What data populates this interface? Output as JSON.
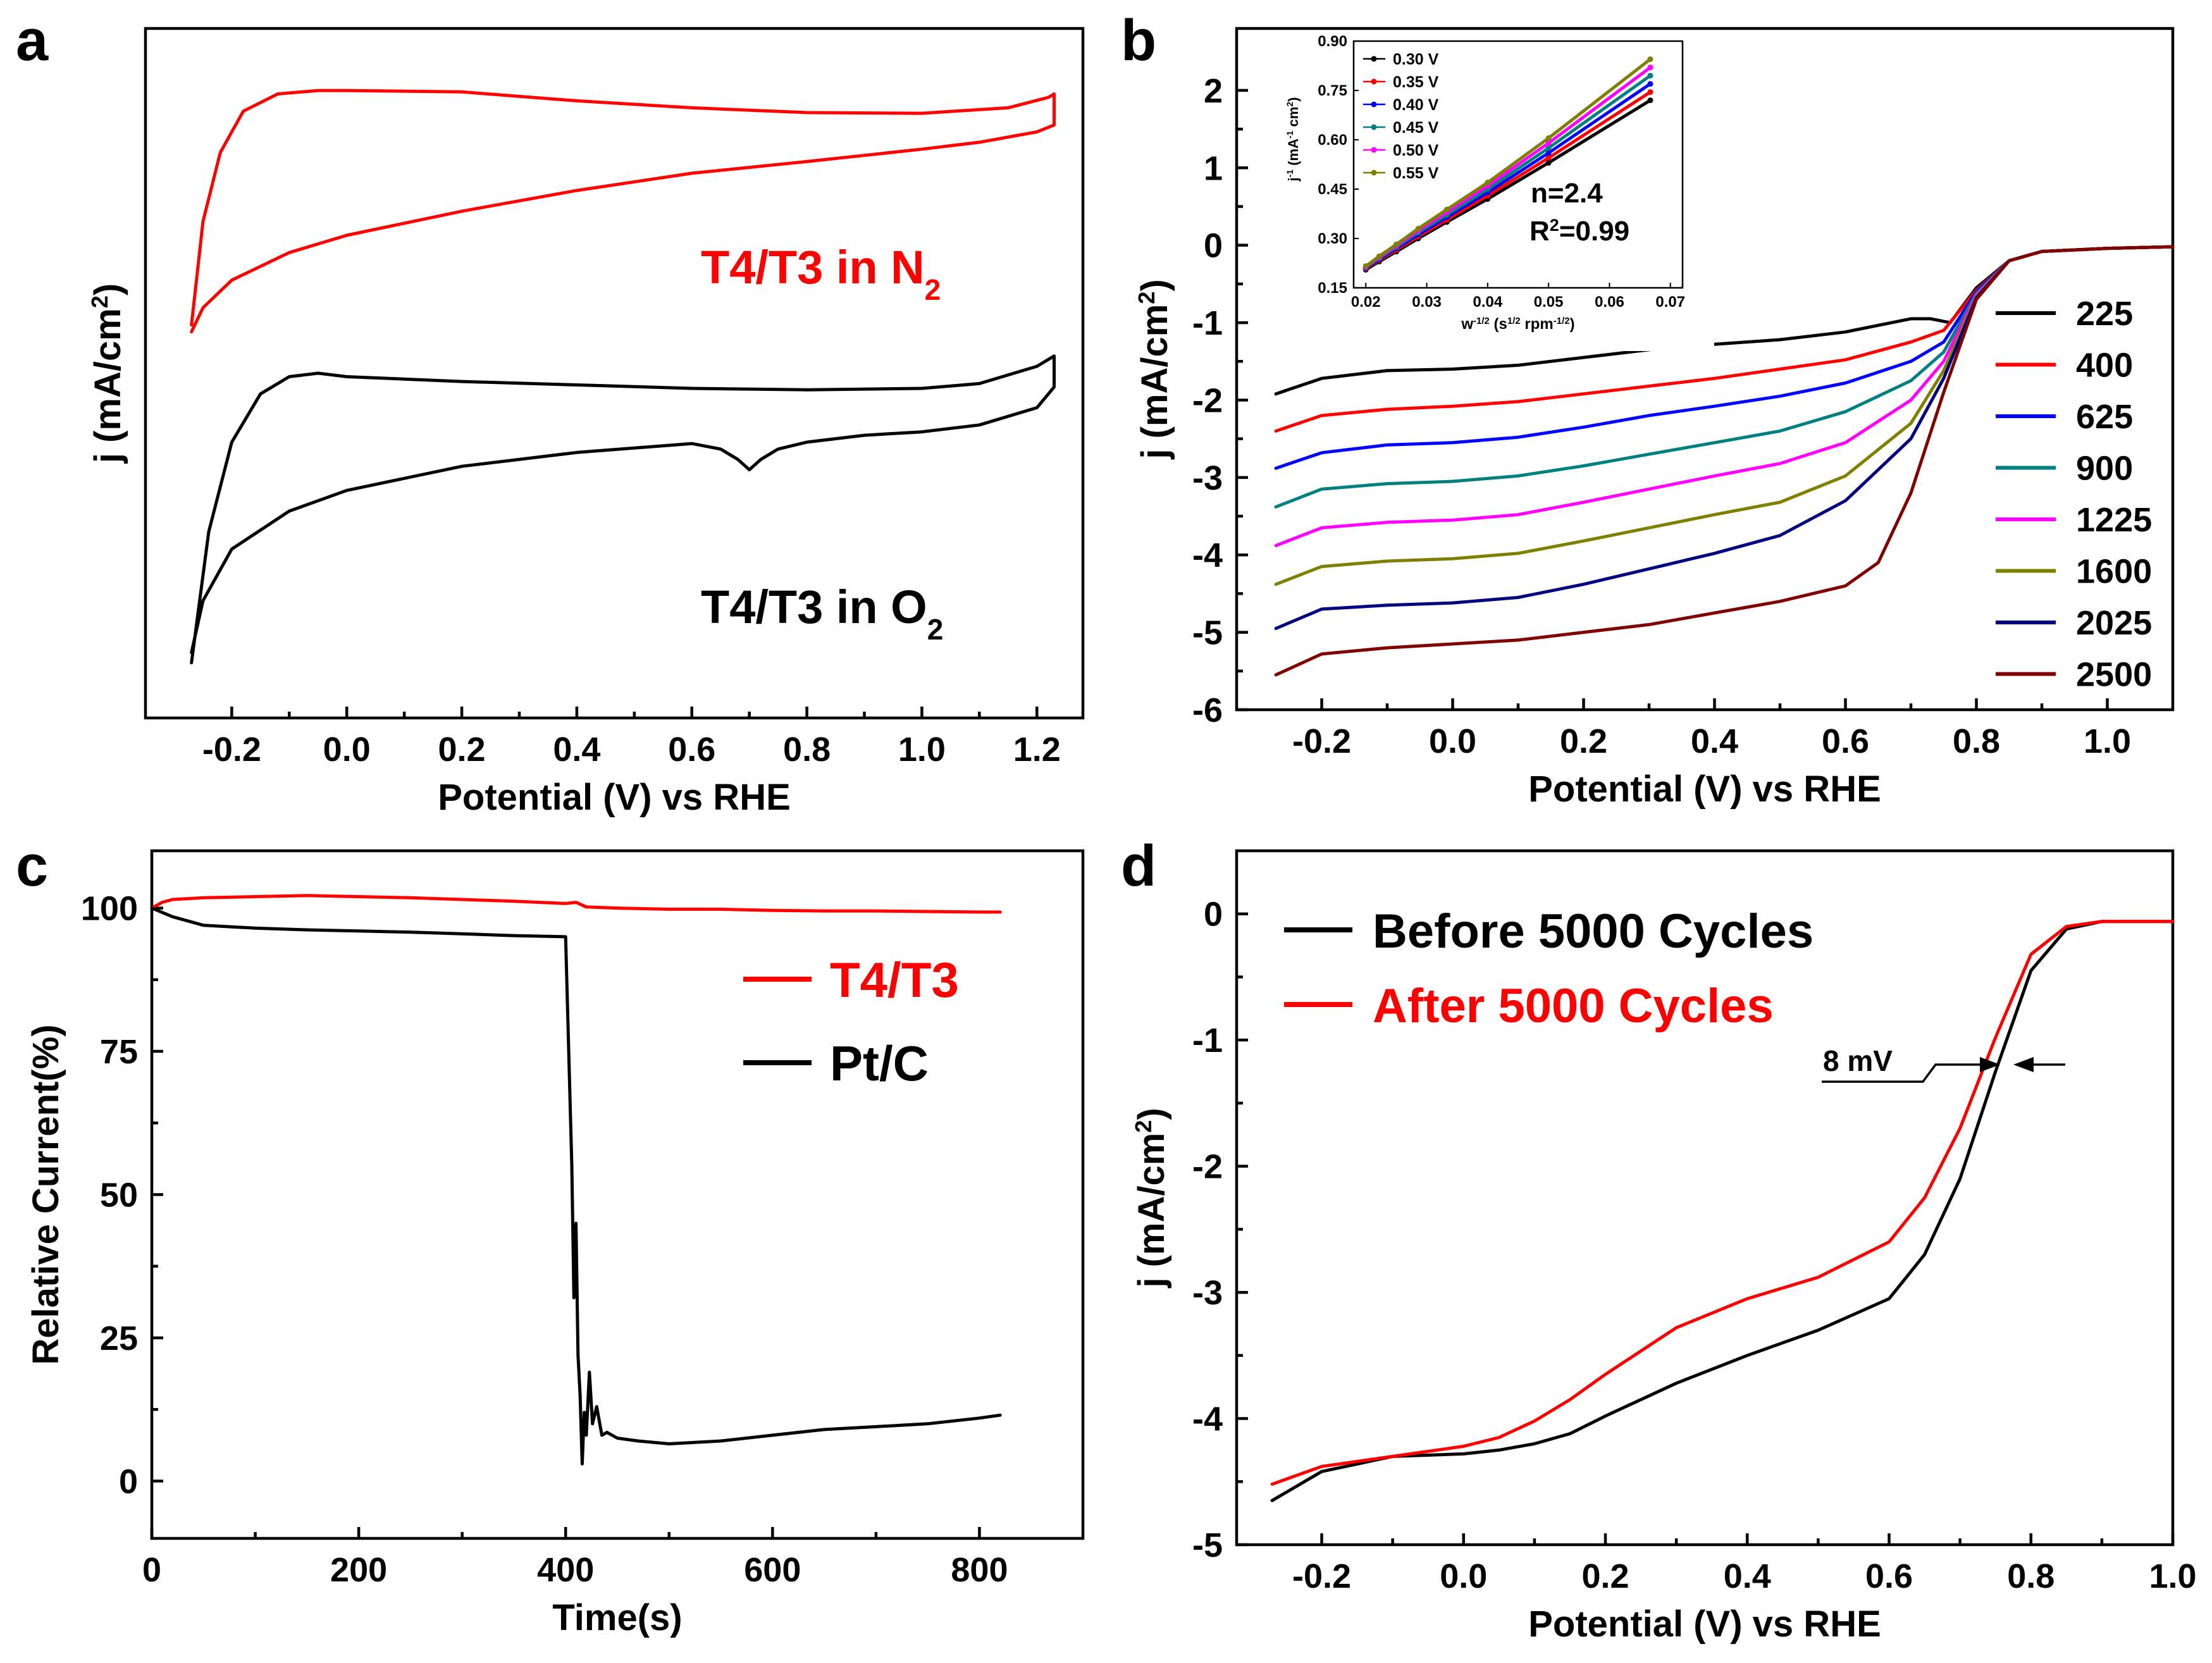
{
  "chart_data": [
    {
      "panel": "a",
      "type": "line",
      "xlabel": "Potential (V) vs RHE",
      "ylabel": "j (mA/cm",
      "ylabel_sup": "2",
      "ylabel_end": ")",
      "xlim": [
        -0.35,
        1.28
      ],
      "xticks": [
        -0.2,
        0.0,
        0.2,
        0.4,
        0.6,
        0.8,
        1.0,
        1.2
      ],
      "xtick_labels": [
        "-0.2",
        "0.0",
        "0.2",
        "0.4",
        "0.6",
        "0.8",
        "1.0",
        "1.2"
      ],
      "ylim": [
        0,
        100
      ],
      "yticks_labeled": false,
      "annotations": [
        {
          "text": "T4/T3 in N",
          "sub": "2",
          "color": "#ff0000"
        },
        {
          "text": "T4/T3 in O",
          "sub": "2",
          "color": "#000000"
        }
      ],
      "series": [
        {
          "name": "T4/T3 in N2",
          "color": "#ff0000",
          "x": [
            -0.27,
            -0.25,
            -0.22,
            -0.18,
            -0.12,
            -0.05,
            0.0,
            0.2,
            0.4,
            0.6,
            0.8,
            1.0,
            1.15,
            1.22,
            1.23,
            1.23,
            1.2,
            1.1,
            1.0,
            0.8,
            0.6,
            0.4,
            0.2,
            0.0,
            -0.1,
            -0.2,
            -0.25,
            -0.27
          ],
          "y": [
            57,
            72,
            82,
            88,
            90.5,
            91,
            91,
            90.8,
            89.5,
            88.5,
            87.8,
            87.7,
            88.5,
            90,
            90.5,
            86,
            85,
            83.5,
            82.5,
            80.7,
            79,
            76.5,
            73.5,
            70,
            67.5,
            63.5,
            59.5,
            56
          ]
        },
        {
          "name": "T4/T3 in O2",
          "color": "#000000",
          "x": [
            -0.27,
            -0.24,
            -0.2,
            -0.15,
            -0.1,
            -0.05,
            0.0,
            0.2,
            0.4,
            0.6,
            0.8,
            1.0,
            1.1,
            1.2,
            1.23,
            1.23,
            1.2,
            1.1,
            1.0,
            0.9,
            0.8,
            0.75,
            0.72,
            0.7,
            0.68,
            0.65,
            0.6,
            0.4,
            0.2,
            0.0,
            -0.1,
            -0.2,
            -0.25,
            -0.27
          ],
          "y": [
            8,
            27,
            40,
            47,
            49.5,
            50,
            49.5,
            48.8,
            48.3,
            47.8,
            47.6,
            47.8,
            48.5,
            51,
            52.5,
            48,
            45,
            42.5,
            41.5,
            41,
            40,
            39,
            37.5,
            36,
            37.5,
            39,
            39.8,
            38.5,
            36.5,
            33,
            30,
            24.5,
            17,
            9.5
          ]
        }
      ]
    },
    {
      "panel": "b",
      "type": "line",
      "xlabel": "Potential (V) vs RHE",
      "ylabel": "j (mA/cm",
      "ylabel_sup": "2",
      "ylabel_end": ")",
      "xlim": [
        -0.33,
        1.1
      ],
      "ylim": [
        -6,
        2.8
      ],
      "xticks": [
        -0.2,
        0.0,
        0.2,
        0.4,
        0.6,
        0.8,
        1.0
      ],
      "xtick_labels": [
        "-0.2",
        "0.0",
        "0.2",
        "0.4",
        "0.6",
        "0.8",
        "1.0"
      ],
      "yticks": [
        -6,
        -5,
        -4,
        -3,
        -2,
        -1,
        0,
        1,
        2
      ],
      "ytick_labels": [
        "-6",
        "-5",
        "-4",
        "-3",
        "-2",
        "-1",
        "0",
        "1",
        "2"
      ],
      "legend_title": "",
      "series": [
        {
          "name": "225",
          "color": "#000000",
          "x": [
            -0.27,
            -0.2,
            -0.1,
            0.0,
            0.1,
            0.2,
            0.3,
            0.4,
            0.5,
            0.6,
            0.7,
            0.73,
            0.76,
            0.8,
            0.85,
            0.9,
            1.0,
            1.1
          ],
          "y": [
            -1.92,
            -1.72,
            -1.62,
            -1.6,
            -1.55,
            -1.45,
            -1.35,
            -1.28,
            -1.22,
            -1.12,
            -0.95,
            -0.95,
            -1.0,
            -0.55,
            -0.2,
            -0.08,
            -0.04,
            -0.02
          ]
        },
        {
          "name": "400",
          "color": "#ff0000",
          "x": [
            -0.27,
            -0.2,
            -0.1,
            0.0,
            0.1,
            0.2,
            0.3,
            0.4,
            0.5,
            0.6,
            0.7,
            0.75,
            0.8,
            0.85,
            0.9,
            1.0,
            1.1
          ],
          "y": [
            -2.4,
            -2.2,
            -2.12,
            -2.08,
            -2.02,
            -1.92,
            -1.82,
            -1.72,
            -1.6,
            -1.48,
            -1.25,
            -1.1,
            -0.58,
            -0.2,
            -0.08,
            -0.04,
            -0.02
          ]
        },
        {
          "name": "625",
          "color": "#0000ff",
          "x": [
            -0.27,
            -0.2,
            -0.1,
            0.0,
            0.1,
            0.2,
            0.3,
            0.4,
            0.5,
            0.6,
            0.7,
            0.75,
            0.8,
            0.85,
            0.9,
            1.0,
            1.1
          ],
          "y": [
            -2.88,
            -2.68,
            -2.58,
            -2.55,
            -2.48,
            -2.35,
            -2.2,
            -2.08,
            -1.95,
            -1.78,
            -1.5,
            -1.25,
            -0.6,
            -0.2,
            -0.08,
            -0.04,
            -0.02
          ]
        },
        {
          "name": "900",
          "color": "#008080",
          "x": [
            -0.27,
            -0.2,
            -0.1,
            0.0,
            0.1,
            0.2,
            0.3,
            0.4,
            0.5,
            0.6,
            0.7,
            0.75,
            0.8,
            0.85,
            0.9,
            1.0,
            1.1
          ],
          "y": [
            -3.38,
            -3.15,
            -3.08,
            -3.05,
            -2.98,
            -2.85,
            -2.7,
            -2.55,
            -2.4,
            -2.15,
            -1.75,
            -1.38,
            -0.62,
            -0.2,
            -0.08,
            -0.04,
            -0.02
          ]
        },
        {
          "name": "1225",
          "color": "#ff00ff",
          "x": [
            -0.27,
            -0.2,
            -0.1,
            0.0,
            0.1,
            0.2,
            0.3,
            0.4,
            0.5,
            0.6,
            0.7,
            0.75,
            0.8,
            0.85,
            0.9,
            1.0,
            1.1
          ],
          "y": [
            -3.88,
            -3.65,
            -3.58,
            -3.55,
            -3.48,
            -3.32,
            -3.15,
            -2.98,
            -2.82,
            -2.55,
            -2.0,
            -1.5,
            -0.64,
            -0.2,
            -0.08,
            -0.04,
            -0.02
          ]
        },
        {
          "name": "1600",
          "color": "#808000",
          "x": [
            -0.27,
            -0.2,
            -0.1,
            0.0,
            0.1,
            0.2,
            0.3,
            0.4,
            0.5,
            0.6,
            0.7,
            0.75,
            0.8,
            0.85,
            0.9,
            1.0,
            1.1
          ],
          "y": [
            -4.38,
            -4.15,
            -4.08,
            -4.05,
            -3.98,
            -3.82,
            -3.65,
            -3.48,
            -3.32,
            -2.98,
            -2.3,
            -1.62,
            -0.66,
            -0.2,
            -0.08,
            -0.04,
            -0.02
          ]
        },
        {
          "name": "2025",
          "color": "#000080",
          "x": [
            -0.27,
            -0.2,
            -0.1,
            0.0,
            0.1,
            0.2,
            0.3,
            0.4,
            0.5,
            0.6,
            0.7,
            0.75,
            0.8,
            0.85,
            0.9,
            1.0,
            1.1
          ],
          "y": [
            -4.95,
            -4.7,
            -4.65,
            -4.62,
            -4.55,
            -4.38,
            -4.18,
            -3.98,
            -3.75,
            -3.3,
            -2.5,
            -1.72,
            -0.68,
            -0.2,
            -0.08,
            -0.04,
            -0.02
          ]
        },
        {
          "name": "2500",
          "color": "#800000",
          "x": [
            -0.27,
            -0.2,
            -0.1,
            0.0,
            0.1,
            0.2,
            0.3,
            0.4,
            0.5,
            0.6,
            0.65,
            0.7,
            0.75,
            0.8,
            0.85,
            0.9,
            1.0,
            1.1
          ],
          "y": [
            -5.55,
            -5.28,
            -5.2,
            -5.15,
            -5.1,
            -5.0,
            -4.9,
            -4.75,
            -4.6,
            -4.4,
            -4.1,
            -3.2,
            -1.9,
            -0.7,
            -0.2,
            -0.08,
            -0.04,
            -0.02
          ]
        }
      ],
      "inset": {
        "type": "scatter",
        "xlabel": "w",
        "xlabel_sup": "-1/2",
        "xlabel_mid": " (s",
        "xlabel_sup2": "1/2",
        "xlabel_mid2": " rpm",
        "xlabel_sup3": "-1/2",
        "xlabel_end": ")",
        "ylabel": "j",
        "ylabel_sup": "-1",
        "ylabel_mid": " (mA",
        "ylabel_sup2": "-1",
        "ylabel_mid2": " cm",
        "ylabel_sup3": "2",
        "ylabel_end": ")",
        "xlim": [
          0.018,
          0.072
        ],
        "ylim": [
          0.15,
          0.9
        ],
        "xticks": [
          0.02,
          0.03,
          0.04,
          0.05,
          0.06,
          0.07
        ],
        "xtick_labels": [
          "0.02",
          "0.03",
          "0.04",
          "0.05",
          "0.06",
          "0.07"
        ],
        "yticks": [
          0.15,
          0.3,
          0.45,
          0.6,
          0.75,
          0.9
        ],
        "ytick_labels": [
          "0.15",
          "0.30",
          "0.45",
          "0.60",
          "0.75",
          "0.90"
        ],
        "x": [
          0.02,
          0.0222,
          0.025,
          0.0286,
          0.0333,
          0.04,
          0.05,
          0.0667
        ],
        "annotation_n": "n=2.4",
        "annotation_r": "R",
        "annotation_r_sup": "2",
        "annotation_r_end": "=0.99",
        "series": [
          {
            "name": "0.30 V",
            "color": "#000000",
            "y": [
              0.205,
              0.23,
              0.26,
              0.3,
              0.35,
              0.42,
              0.53,
              0.72
            ]
          },
          {
            "name": "0.35 V",
            "color": "#ff0000",
            "y": [
              0.208,
              0.234,
              0.265,
              0.306,
              0.357,
              0.43,
              0.545,
              0.745
            ]
          },
          {
            "name": "0.40 V",
            "color": "#0000ff",
            "y": [
              0.21,
              0.237,
              0.27,
              0.312,
              0.365,
              0.44,
              0.56,
              0.77
            ]
          },
          {
            "name": "0.45 V",
            "color": "#008080",
            "y": [
              0.212,
              0.24,
              0.274,
              0.318,
              0.372,
              0.45,
              0.575,
              0.795
            ]
          },
          {
            "name": "0.50 V",
            "color": "#ff00ff",
            "y": [
              0.214,
              0.243,
              0.278,
              0.324,
              0.38,
              0.46,
              0.59,
              0.82
            ]
          },
          {
            "name": "0.55 V",
            "color": "#808000",
            "y": [
              0.216,
              0.246,
              0.282,
              0.33,
              0.388,
              0.47,
              0.605,
              0.845
            ]
          }
        ]
      }
    },
    {
      "panel": "c",
      "type": "line",
      "xlabel": "Time(s)",
      "ylabel": "Relative Current(%)",
      "xlim": [
        0,
        900
      ],
      "ylim": [
        -10,
        110
      ],
      "xticks": [
        0,
        200,
        400,
        600,
        800
      ],
      "xtick_labels": [
        "0",
        "200",
        "400",
        "600",
        "800"
      ],
      "yticks": [
        0,
        25,
        50,
        75,
        100
      ],
      "ytick_labels": [
        "0",
        "25",
        "50",
        "75",
        "100"
      ],
      "series": [
        {
          "name": "T4/T3",
          "color": "#ff0000",
          "x": [
            0,
            10,
            20,
            50,
            100,
            150,
            200,
            250,
            300,
            350,
            400,
            410,
            420,
            450,
            500,
            550,
            600,
            650,
            700,
            750,
            800,
            820
          ],
          "y": [
            100,
            101,
            101.5,
            101.8,
            102,
            102.2,
            102,
            101.8,
            101.5,
            101.2,
            100.8,
            101,
            100.2,
            100,
            99.8,
            99.8,
            99.6,
            99.5,
            99.5,
            99.4,
            99.3,
            99.3
          ]
        },
        {
          "name": "Pt/C",
          "color": "#000000",
          "x": [
            0,
            20,
            50,
            100,
            150,
            200,
            250,
            300,
            350,
            400,
            403,
            406,
            408,
            410,
            412,
            414,
            416,
            418,
            420,
            423,
            426,
            430,
            435,
            440,
            450,
            470,
            500,
            550,
            600,
            650,
            700,
            750,
            800,
            820
          ],
          "y": [
            100,
            98.5,
            97,
            96.5,
            96.2,
            96,
            95.8,
            95.5,
            95.2,
            95,
            75,
            55,
            32,
            45,
            22,
            15,
            3,
            12,
            8,
            19,
            10,
            13,
            8,
            8.5,
            7.5,
            7,
            6.5,
            7,
            8,
            9,
            9.5,
            10,
            11,
            11.5
          ]
        }
      ]
    },
    {
      "panel": "d",
      "type": "line",
      "xlabel": "Potential (V) vs RHE",
      "ylabel": "j (mA/cm",
      "ylabel_sup": "2",
      "ylabel_end": ")",
      "xlim": [
        -0.32,
        1.0
      ],
      "ylim": [
        -5,
        0.5
      ],
      "xticks": [
        -0.2,
        0.0,
        0.2,
        0.4,
        0.6,
        0.8,
        1.0
      ],
      "xtick_labels": [
        "-0.2",
        "0.0",
        "0.2",
        "0.4",
        "0.6",
        "0.8",
        "1.0"
      ],
      "yticks": [
        -5,
        -4,
        -3,
        -2,
        -1,
        0
      ],
      "ytick_labels": [
        "-5",
        "-4",
        "-3",
        "-2",
        "-1",
        "0"
      ],
      "annotation": "8 mV",
      "series": [
        {
          "name": "Before 5000 Cycles",
          "color": "#000000",
          "x": [
            -0.27,
            -0.2,
            -0.1,
            0.0,
            0.05,
            0.1,
            0.15,
            0.2,
            0.3,
            0.4,
            0.5,
            0.6,
            0.65,
            0.7,
            0.75,
            0.8,
            0.85,
            0.9,
            1.0
          ],
          "y": [
            -4.65,
            -4.42,
            -4.3,
            -4.28,
            -4.25,
            -4.2,
            -4.12,
            -3.98,
            -3.72,
            -3.5,
            -3.3,
            -3.05,
            -2.7,
            -2.1,
            -1.25,
            -0.45,
            -0.12,
            -0.06,
            -0.06
          ]
        },
        {
          "name": "After 5000 Cycles",
          "color": "#ff0000",
          "x": [
            -0.27,
            -0.2,
            -0.1,
            0.0,
            0.05,
            0.1,
            0.15,
            0.2,
            0.3,
            0.4,
            0.5,
            0.6,
            0.65,
            0.7,
            0.75,
            0.8,
            0.85,
            0.9,
            1.0
          ],
          "y": [
            -4.52,
            -4.38,
            -4.3,
            -4.22,
            -4.15,
            -4.02,
            -3.85,
            -3.65,
            -3.28,
            -3.05,
            -2.88,
            -2.6,
            -2.25,
            -1.7,
            -0.98,
            -0.32,
            -0.1,
            -0.06,
            -0.06
          ]
        }
      ]
    }
  ],
  "panel_letters": [
    "a",
    "b",
    "c",
    "d"
  ]
}
